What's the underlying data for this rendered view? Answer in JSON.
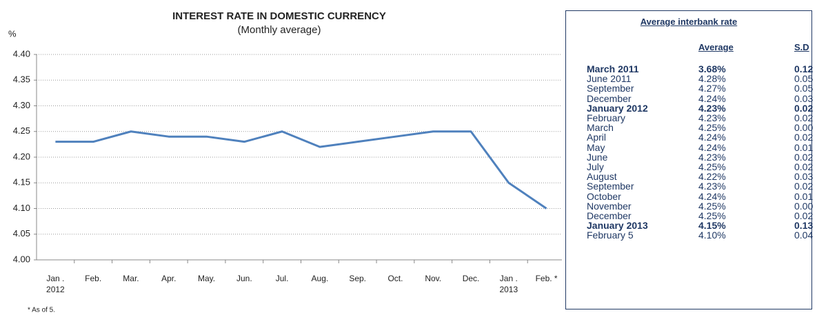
{
  "chart_data": {
    "type": "line",
    "title": "INTEREST RATE IN DOMESTIC CURRENCY",
    "subtitle": "(Monthly average)",
    "y_label": "%",
    "footnote": "* As of 5.",
    "categories": [
      "Jan .\n2012",
      "Feb.",
      "Mar.",
      "Apr.",
      "May.",
      "Jun.",
      "Jul.",
      "Aug.",
      "Sep.",
      "Oct.",
      "Nov.",
      "Dec.",
      "Jan .\n2013",
      "Feb. *"
    ],
    "values": [
      4.23,
      4.23,
      4.25,
      4.24,
      4.24,
      4.23,
      4.25,
      4.22,
      4.23,
      4.24,
      4.25,
      4.25,
      4.15,
      4.1
    ],
    "color": "#4f81bd",
    "ylim": [
      4.0,
      4.4
    ],
    "yticks": [
      {
        "value": 4.0,
        "label": "4.00"
      },
      {
        "value": 4.05,
        "label": "4.05"
      },
      {
        "value": 4.1,
        "label": "4.10"
      },
      {
        "value": 4.15,
        "label": "4.15"
      },
      {
        "value": 4.2,
        "label": "4.20"
      },
      {
        "value": 4.25,
        "label": "4.25"
      },
      {
        "value": 4.3,
        "label": "4.30"
      },
      {
        "value": 4.35,
        "label": "4.35"
      },
      {
        "value": 4.4,
        "label": "4.40"
      }
    ],
    "grid": true
  },
  "table": {
    "title": "Average interbank rate",
    "header": [
      "Average",
      "S.D"
    ],
    "rows": [
      {
        "cells": [
          "March 2011",
          "3.68%",
          "0.12"
        ],
        "bold": true
      },
      {
        "cells": [
          "June 2011",
          "4.28%",
          "0.05"
        ]
      },
      {
        "cells": [
          "September",
          "4.27%",
          "0.05"
        ]
      },
      {
        "cells": [
          "December",
          "4.24%",
          "0.03"
        ]
      },
      {
        "cells": [
          "January 2012",
          "4.23%",
          "0.02"
        ],
        "bold": true
      },
      {
        "cells": [
          "February",
          "4.23%",
          "0.02"
        ]
      },
      {
        "cells": [
          "March",
          "4.25%",
          "0.00"
        ]
      },
      {
        "cells": [
          "April",
          "4.24%",
          "0.02"
        ]
      },
      {
        "cells": [
          "May",
          "4.24%",
          "0.01"
        ]
      },
      {
        "cells": [
          "June",
          "4.23%",
          "0.02"
        ]
      },
      {
        "cells": [
          "July",
          "4.25%",
          "0.02"
        ]
      },
      {
        "cells": [
          "August",
          "4.22%",
          "0.03"
        ]
      },
      {
        "cells": [
          "September",
          "4.23%",
          "0.02"
        ]
      },
      {
        "cells": [
          "October",
          "4.24%",
          "0.01"
        ]
      },
      {
        "cells": [
          "November",
          "4.25%",
          "0.00"
        ]
      },
      {
        "cells": [
          "December",
          "4.25%",
          "0.02"
        ]
      },
      {
        "cells": [
          "January 2013",
          "4.15%",
          "0.13"
        ],
        "bold": true
      },
      {
        "cells": [
          "February 5",
          "4.10%",
          "0.04"
        ]
      }
    ]
  }
}
